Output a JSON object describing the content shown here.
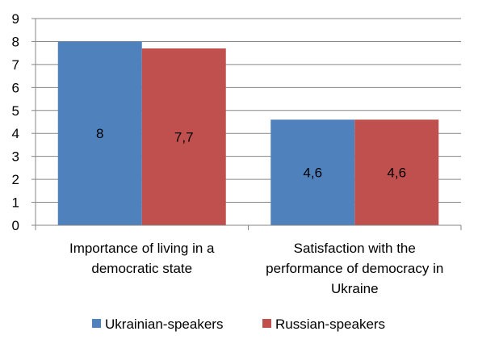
{
  "chart_data": {
    "type": "bar",
    "categories": [
      [
        "Importance of living in a",
        "democratic state"
      ],
      [
        "Satisfaction with the",
        "performance of democracy in",
        "Ukraine"
      ]
    ],
    "series": [
      {
        "name": "Ukrainian-speakers",
        "values": [
          8,
          4.6
        ],
        "labels": [
          "8",
          "4,6"
        ],
        "color": "#4F81BD"
      },
      {
        "name": "Russian-speakers",
        "values": [
          7.7,
          4.6
        ],
        "labels": [
          "7,7",
          "4,6"
        ],
        "color": "#C0504D"
      }
    ],
    "ylim": [
      0,
      9
    ],
    "yticks": [
      0,
      1,
      2,
      3,
      4,
      5,
      6,
      7,
      8,
      9
    ],
    "grid": true,
    "legend": "bottom",
    "title": "",
    "xlabel": "",
    "ylabel": ""
  }
}
